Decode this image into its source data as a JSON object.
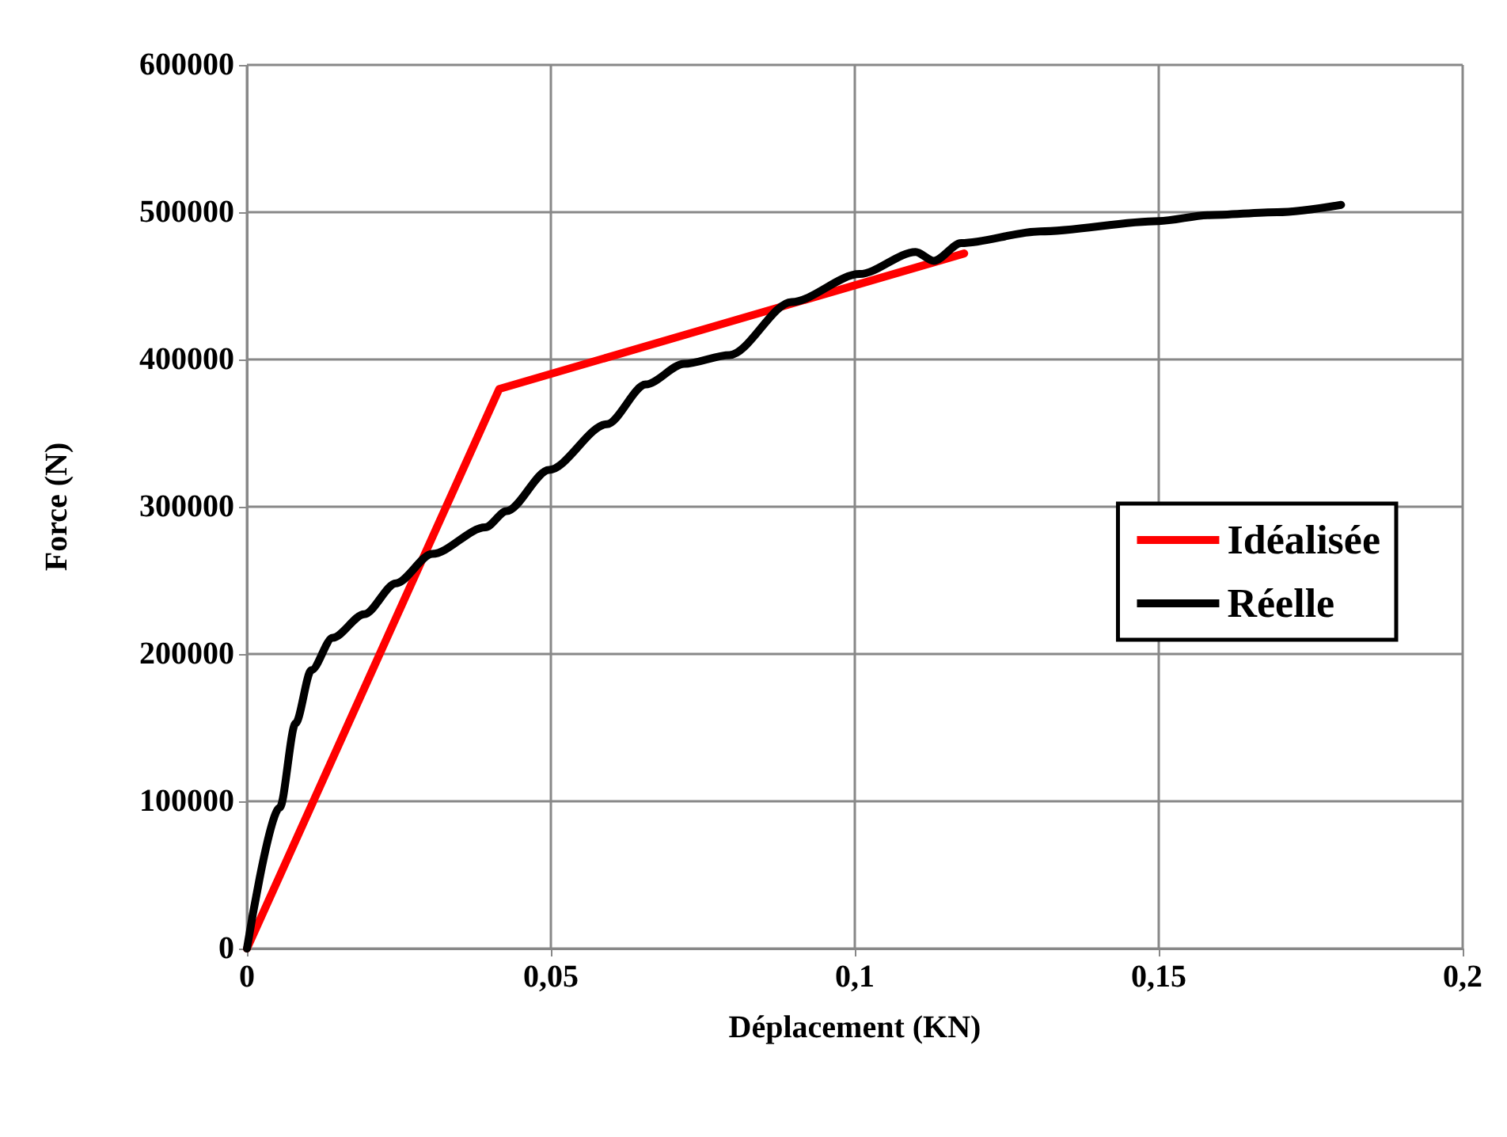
{
  "chart_data": {
    "type": "line",
    "xlabel": "Déplacement (KN)",
    "ylabel": "Force (N)",
    "xlim": [
      0,
      0.2
    ],
    "xticks": [
      {
        "value": 0,
        "label": "0"
      },
      {
        "value": 0.05,
        "label": "0,05"
      },
      {
        "value": 0.1,
        "label": "0,1"
      },
      {
        "value": 0.15,
        "label": "0,15"
      },
      {
        "value": 0.2,
        "label": "0,2"
      }
    ],
    "ylim": [
      0,
      600000
    ],
    "yticks": [
      0,
      100000,
      200000,
      300000,
      400000,
      500000,
      600000
    ],
    "grid": true,
    "legend": "right",
    "marker": "none",
    "line_style": "solid",
    "series": [
      {
        "name": "Idéalisée",
        "color": "#ff0000",
        "x": [
          0,
          0.0415,
          0.118
        ],
        "values": [
          0,
          380000,
          472000
        ]
      },
      {
        "name": "Réelle",
        "color": "#000000",
        "x": [
          0,
          0.0054,
          0.008,
          0.0106,
          0.0141,
          0.0193,
          0.0245,
          0.0305,
          0.0392,
          0.0427,
          0.0497,
          0.0592,
          0.0656,
          0.0719,
          0.0794,
          0.0896,
          0.1008,
          0.11,
          0.113,
          0.1175,
          0.1305,
          0.15,
          0.1583,
          0.1695,
          0.18
        ],
        "values": [
          0,
          95700,
          153000,
          189000,
          211000,
          227000,
          248000,
          268000,
          286000,
          297000,
          325000,
          356000,
          383000,
          397000,
          403000,
          439000,
          458000,
          473000,
          467000,
          479000,
          487000,
          494000,
          498000,
          500000,
          505000
        ]
      }
    ]
  }
}
